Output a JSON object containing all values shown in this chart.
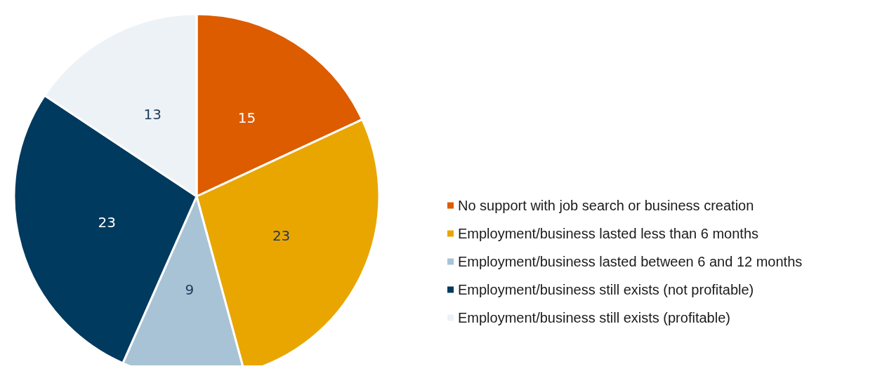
{
  "chart_data": {
    "type": "pie",
    "categories": [
      "No support with job search or business creation",
      "Employment/business lasted less than 6 months",
      "Employment/business lasted between 6 and 12 months",
      "Employment/business still exists (not profitable)",
      "Employment/business still exists (profitable)"
    ],
    "values": [
      15,
      23,
      9,
      23,
      13
    ],
    "colors": [
      "#dd5c00",
      "#e9a600",
      "#a8c3d6",
      "#003a5e",
      "#edf2f7"
    ],
    "data_labels": true,
    "legend": "bottom right"
  }
}
